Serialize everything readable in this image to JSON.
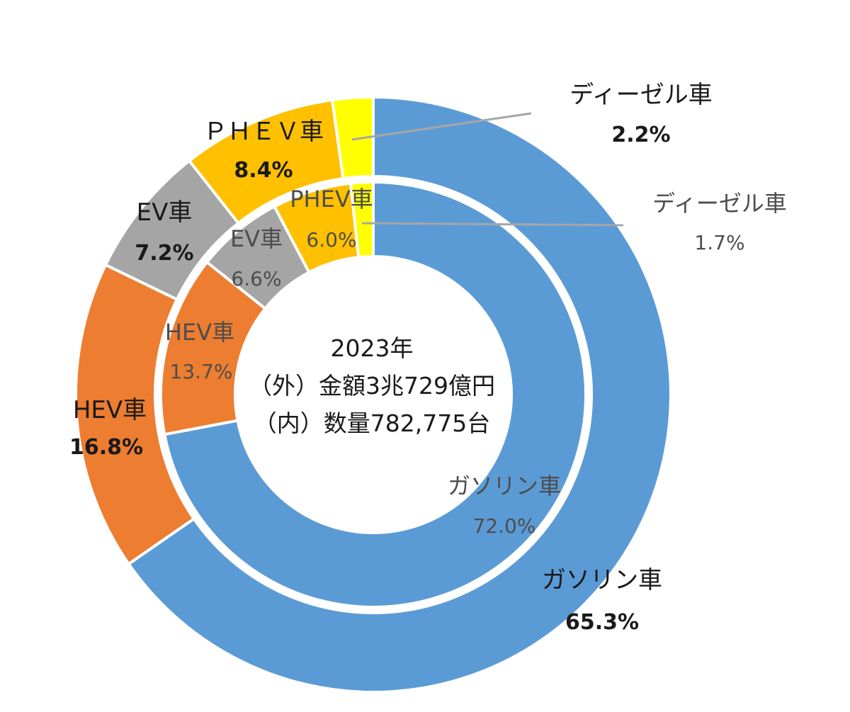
{
  "chart_data": {
    "type": "donut",
    "center_text": [
      "2023年",
      "（外）金額3兆729億円",
      "（内）数量782,775台"
    ],
    "series": [
      {
        "ring": "outer",
        "slices": [
          {
            "label": "ガソリン車",
            "display": "65.3%",
            "value": 65.3,
            "color": "#5B9BD5"
          },
          {
            "label": "HEV車",
            "display": "16.8%",
            "value": 16.8,
            "color": "#ED7D31"
          },
          {
            "label": "EV車",
            "display": "7.2%",
            "value": 7.2,
            "color": "#A5A5A5"
          },
          {
            "label": "ＰＨＥＶ車",
            "display": "8.4%",
            "value": 8.4,
            "color": "#FFC000"
          },
          {
            "label": "ディーゼル車",
            "display": "2.2%",
            "value": 2.2,
            "color": "#FFFF00"
          }
        ]
      },
      {
        "ring": "inner",
        "slices": [
          {
            "label": "ガソリン車",
            "display": "72.0%",
            "value": 72.0,
            "color": "#5B9BD5"
          },
          {
            "label": "HEV車",
            "display": "13.7%",
            "value": 13.7,
            "color": "#ED7D31"
          },
          {
            "label": "EV車",
            "display": "6.6%",
            "value": 6.6,
            "color": "#A5A5A5"
          },
          {
            "label": "PHEV車",
            "display": "6.0%",
            "value": 6.0,
            "color": "#FFC000"
          },
          {
            "label": "ディーゼル車",
            "display": "1.7%",
            "value": 1.7,
            "color": "#FFFF00"
          }
        ]
      }
    ]
  }
}
